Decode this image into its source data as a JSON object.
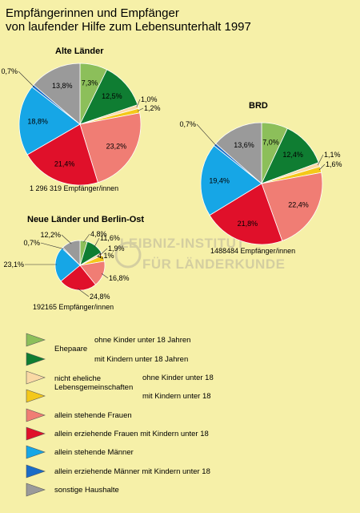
{
  "title": {
    "line1": "Empfängerinnen und Empfänger",
    "line2": "von laufender Hilfe zum Lebensunterhalt 1997"
  },
  "watermark": {
    "line1": "LEIBNIZ-INSTITUT",
    "line2": "FÜR LÄNDERKUNDE"
  },
  "colors": {
    "c1": "#8cbf5a",
    "c2": "#0f7d32",
    "c3": "#fad9a5",
    "c4": "#f4c81a",
    "c5": "#f07d74",
    "c6": "#e0102a",
    "c7": "#16a6e6",
    "c8": "#1a6cc7",
    "c9": "#9a9a9a"
  },
  "legend": {
    "group_ehepaare": "Ehepaare",
    "group_nichtehelich_1": "nicht eheliche",
    "group_nichtehelich_2": "Lebensgemeinschaften",
    "items": [
      {
        "label": "ohne Kinder unter 18 Jahren",
        "color": "#8cbf5a"
      },
      {
        "label": "mit Kindern unter 18 Jahren",
        "color": "#0f7d32"
      },
      {
        "label": "ohne Kinder unter 18",
        "color": "#fad9a5"
      },
      {
        "label": "mit Kindern unter 18",
        "color": "#f4c81a"
      },
      {
        "label": "allein stehende Frauen",
        "color": "#f07d74"
      },
      {
        "label": "allein erziehende Frauen mit Kindern unter 18",
        "color": "#e0102a"
      },
      {
        "label": "allein stehende Männer",
        "color": "#16a6e6"
      },
      {
        "label": "allein erziehende Männer mit Kindern unter 18",
        "color": "#1a6cc7"
      },
      {
        "label": "sonstige Haushalte",
        "color": "#9a9a9a"
      }
    ]
  },
  "chart_data": [
    {
      "type": "pie",
      "title": "Alte Länder",
      "total_label": "1 296 319 Empfänger/innen",
      "categories": [
        "Ehepaare ohne Kinder unter 18 Jahren",
        "Ehepaare mit Kindern unter 18 Jahren",
        "nicht eheliche Lebensgemeinschaften ohne Kinder unter 18",
        "nicht eheliche Lebensgemeinschaften mit Kindern unter 18",
        "allein stehende Frauen",
        "allein erziehende Frauen mit Kindern unter 18",
        "allein stehende Männer",
        "allein erziehende Männer mit Kindern unter 18",
        "sonstige Haushalte"
      ],
      "values": [
        7.3,
        12.5,
        1.0,
        1.2,
        23.2,
        21.4,
        18.8,
        0.7,
        13.8
      ],
      "value_labels": [
        "7,3%",
        "12,5%",
        "1,0%",
        "1,2%",
        "23,2%",
        "21,4%",
        "18,8%",
        "0,7%",
        "13,8%"
      ]
    },
    {
      "type": "pie",
      "title": "BRD",
      "total_label": "1488484 Empfänger/innen",
      "categories": [
        "Ehepaare ohne Kinder unter 18 Jahren",
        "Ehepaare mit Kindern unter 18 Jahren",
        "nicht eheliche Lebensgemeinschaften ohne Kinder unter 18",
        "nicht eheliche Lebensgemeinschaften mit Kindern unter 18",
        "allein stehende Frauen",
        "allein erziehende Frauen mit Kindern unter 18",
        "allein stehende Männer",
        "allein erziehende Männer mit Kindern unter 18",
        "sonstige Haushalte"
      ],
      "values": [
        7.0,
        12.4,
        1.1,
        1.6,
        22.4,
        21.8,
        19.4,
        0.7,
        13.6
      ],
      "value_labels": [
        "7,0%",
        "12,4%",
        "1,1%",
        "1,6%",
        "22,4%",
        "21,8%",
        "19,4%",
        "0,7%",
        "13,6%"
      ]
    },
    {
      "type": "pie",
      "title": "Neue Länder und Berlin-Ost",
      "total_label": "192165 Empfänger/innen",
      "categories": [
        "Ehepaare ohne Kinder unter 18 Jahren",
        "Ehepaare mit Kindern unter 18 Jahren",
        "nicht eheliche Lebensgemeinschaften ohne Kinder unter 18",
        "nicht eheliche Lebensgemeinschaften mit Kindern unter 18",
        "allein stehende Frauen",
        "allein erziehende Frauen mit Kindern unter 18",
        "allein stehende Männer",
        "allein erziehende Männer mit Kindern unter 18",
        "sonstige Haushalte"
      ],
      "values": [
        4.8,
        11.6,
        1.9,
        4.1,
        16.8,
        24.8,
        23.1,
        0.7,
        12.2
      ],
      "value_labels": [
        "4,8%",
        "11,6%",
        "1,9%",
        "4,1%",
        "16,8%",
        "24,8%",
        "23,1%",
        "0,7%",
        "12,2%"
      ]
    }
  ]
}
